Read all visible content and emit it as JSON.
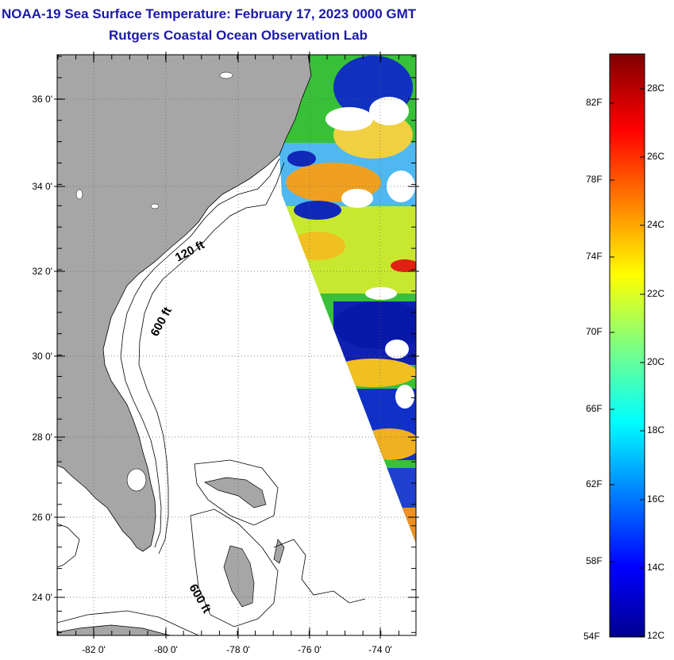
{
  "header": {
    "title": "NOAA-19 Sea Surface Temperature:  February 17, 2023 0000 GMT",
    "subtitle": "Rutgers Coastal Ocean Observation Lab"
  },
  "map": {
    "lat_labels": [
      "36 0'",
      "34 0'",
      "32 0'",
      "30 0'",
      "28 0'",
      "26 0'",
      "24 0'"
    ],
    "lon_labels": [
      "-82 0'",
      "-80 0'",
      "-78 0'",
      "-76 0'",
      "-74 0'"
    ],
    "contour_labels": [
      "120 ft",
      "600 ft",
      "600 ft"
    ],
    "colors": {
      "land": "#a6a6a6",
      "ocean_blank": "#ffffff",
      "grid": "#666666"
    }
  },
  "colorbar": {
    "fahrenheit": [
      "82F",
      "78F",
      "74F",
      "70F",
      "66F",
      "62F",
      "58F",
      "54F"
    ],
    "celsius": [
      "28C",
      "26C",
      "24C",
      "22C",
      "20C",
      "18C",
      "16C",
      "14C",
      "12C"
    ]
  }
}
